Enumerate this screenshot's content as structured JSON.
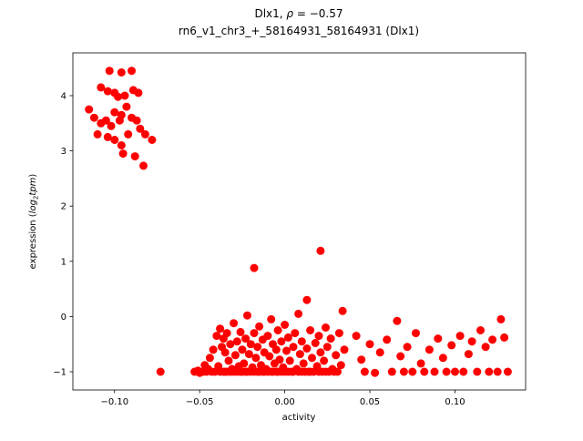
{
  "figure": {
    "background": "#ffffff"
  },
  "chart_data": {
    "type": "scatter",
    "title_parts": {
      "name": "Dlx1, ",
      "rho": "ρ",
      "rest": " = −0.57"
    },
    "subtitle": "rn6_v1_chr3_+_58164931_58164931 (Dlx1)",
    "xlabel": "activity",
    "ylabel_parts": {
      "prefix": "expression (",
      "log": "log",
      "sub": "2",
      "word": "tpm",
      "suffix": ")"
    },
    "marker_color": "#ff0000",
    "marker_radius": 4.5,
    "grid": false,
    "legend": "none",
    "xlim": [
      -0.1245,
      0.1415
    ],
    "ylim": [
      -1.33,
      4.775
    ],
    "xticks": [
      -0.1,
      -0.05,
      0.0,
      0.05,
      0.1
    ],
    "xtick_labels": [
      "−0.10",
      "−0.05",
      "0.00",
      "0.05",
      "0.10"
    ],
    "yticks": [
      -1,
      0,
      1,
      2,
      3,
      4
    ],
    "ytick_labels": [
      "−1",
      "0",
      "1",
      "2",
      "3",
      "4"
    ],
    "points": [
      [
        -0.103,
        4.45
      ],
      [
        -0.096,
        4.42
      ],
      [
        -0.09,
        4.45
      ],
      [
        -0.108,
        4.15
      ],
      [
        -0.104,
        4.08
      ],
      [
        -0.1,
        4.05
      ],
      [
        -0.094,
        4.0
      ],
      [
        -0.089,
        4.1
      ],
      [
        -0.086,
        4.05
      ],
      [
        -0.098,
        3.98
      ],
      [
        -0.115,
        3.75
      ],
      [
        -0.112,
        3.6
      ],
      [
        -0.108,
        3.5
      ],
      [
        -0.105,
        3.55
      ],
      [
        -0.102,
        3.45
      ],
      [
        -0.1,
        3.7
      ],
      [
        -0.097,
        3.55
      ],
      [
        -0.096,
        3.65
      ],
      [
        -0.093,
        3.8
      ],
      [
        -0.09,
        3.6
      ],
      [
        -0.087,
        3.55
      ],
      [
        -0.11,
        3.3
      ],
      [
        -0.104,
        3.25
      ],
      [
        -0.1,
        3.2
      ],
      [
        -0.096,
        3.1
      ],
      [
        -0.092,
        3.3
      ],
      [
        -0.085,
        3.4
      ],
      [
        -0.082,
        3.3
      ],
      [
        -0.095,
        2.95
      ],
      [
        -0.088,
        2.9
      ],
      [
        -0.078,
        3.2
      ],
      [
        -0.083,
        2.73
      ],
      [
        -0.073,
        -1.0
      ],
      [
        -0.018,
        0.88
      ],
      [
        0.021,
        1.19
      ],
      [
        -0.053,
        -1.0
      ],
      [
        -0.051,
        -0.98
      ],
      [
        -0.05,
        -1.02
      ],
      [
        -0.048,
        -1.0
      ],
      [
        -0.047,
        -0.88
      ],
      [
        -0.046,
        -1.0
      ],
      [
        -0.045,
        -0.95
      ],
      [
        -0.044,
        -0.75
      ],
      [
        -0.043,
        -1.0
      ],
      [
        -0.042,
        -0.6
      ],
      [
        -0.041,
        -1.0
      ],
      [
        -0.04,
        -0.35
      ],
      [
        -0.039,
        -0.9
      ],
      [
        -0.038,
        -0.22
      ],
      [
        -0.038,
        -1.0
      ],
      [
        -0.037,
        -0.55
      ],
      [
        -0.036,
        -1.0
      ],
      [
        -0.036,
        -0.4
      ],
      [
        -0.035,
        -0.65
      ],
      [
        -0.035,
        -1.0
      ],
      [
        -0.034,
        -0.3
      ],
      [
        -0.034,
        -1.0
      ],
      [
        -0.033,
        -0.8
      ],
      [
        -0.032,
        -1.0
      ],
      [
        -0.032,
        -0.5
      ],
      [
        -0.031,
        -0.95
      ],
      [
        -0.03,
        -0.12
      ],
      [
        -0.03,
        -1.0
      ],
      [
        -0.029,
        -0.7
      ],
      [
        -0.028,
        -1.0
      ],
      [
        -0.028,
        -0.45
      ],
      [
        -0.027,
        -0.9
      ],
      [
        -0.026,
        -1.0
      ],
      [
        -0.026,
        -0.28
      ],
      [
        -0.025,
        -0.6
      ],
      [
        -0.025,
        -1.0
      ],
      [
        -0.024,
        -0.85
      ],
      [
        -0.023,
        -1.0
      ],
      [
        -0.023,
        -0.4
      ],
      [
        -0.022,
        0.02
      ],
      [
        -0.022,
        -1.0
      ],
      [
        -0.021,
        -0.68
      ],
      [
        -0.02,
        -1.0
      ],
      [
        -0.02,
        -0.5
      ],
      [
        -0.019,
        -0.92
      ],
      [
        -0.018,
        -1.0
      ],
      [
        -0.018,
        -0.3
      ],
      [
        -0.017,
        -0.75
      ],
      [
        -0.016,
        -1.0
      ],
      [
        -0.016,
        -0.55
      ],
      [
        -0.015,
        -1.0
      ],
      [
        -0.015,
        -0.18
      ],
      [
        -0.014,
        -0.88
      ],
      [
        -0.013,
        -1.0
      ],
      [
        -0.013,
        -0.42
      ],
      [
        -0.012,
        -0.65
      ],
      [
        -0.012,
        -1.0
      ],
      [
        -0.011,
        -0.95
      ],
      [
        -0.01,
        -1.0
      ],
      [
        -0.01,
        -0.35
      ],
      [
        -0.009,
        -0.72
      ],
      [
        -0.008,
        -1.0
      ],
      [
        -0.008,
        -0.05
      ],
      [
        -0.007,
        -0.5
      ],
      [
        -0.007,
        -1.0
      ],
      [
        -0.006,
        -0.85
      ],
      [
        -0.005,
        -1.0
      ],
      [
        -0.005,
        -0.6
      ],
      [
        -0.004,
        -0.25
      ],
      [
        -0.004,
        -1.0
      ],
      [
        -0.003,
        -0.78
      ],
      [
        -0.002,
        -1.0
      ],
      [
        -0.002,
        -0.45
      ],
      [
        -0.001,
        -0.92
      ],
      [
        0.0,
        -1.0
      ],
      [
        0.0,
        -0.15
      ],
      [
        0.001,
        -0.62
      ],
      [
        0.002,
        -1.0
      ],
      [
        0.002,
        -0.38
      ],
      [
        0.003,
        -0.8
      ],
      [
        0.004,
        -1.0
      ],
      [
        0.005,
        -0.55
      ],
      [
        0.005,
        -1.0
      ],
      [
        0.006,
        -0.3
      ],
      [
        0.007,
        -0.95
      ],
      [
        0.008,
        0.05
      ],
      [
        0.008,
        -1.0
      ],
      [
        0.009,
        -0.68
      ],
      [
        0.01,
        -1.0
      ],
      [
        0.01,
        -0.45
      ],
      [
        0.011,
        -0.85
      ],
      [
        0.012,
        -1.0
      ],
      [
        0.013,
        0.3
      ],
      [
        0.013,
        -0.58
      ],
      [
        0.014,
        -1.0
      ],
      [
        0.015,
        -0.25
      ],
      [
        0.015,
        -1.0
      ],
      [
        0.016,
        -0.75
      ],
      [
        0.017,
        -1.0
      ],
      [
        0.018,
        -0.48
      ],
      [
        0.019,
        -0.9
      ],
      [
        0.02,
        -1.0
      ],
      [
        0.02,
        -0.35
      ],
      [
        0.021,
        -0.65
      ],
      [
        0.022,
        -1.0
      ],
      [
        0.023,
        -0.8
      ],
      [
        0.024,
        -0.2
      ],
      [
        0.024,
        -1.0
      ],
      [
        0.025,
        -0.55
      ],
      [
        0.026,
        -1.0
      ],
      [
        0.027,
        -0.4
      ],
      [
        0.028,
        -0.95
      ],
      [
        0.029,
        -1.0
      ],
      [
        0.03,
        -0.7
      ],
      [
        0.031,
        -1.0
      ],
      [
        0.032,
        -0.3
      ],
      [
        0.033,
        -0.88
      ],
      [
        0.034,
        0.1
      ],
      [
        0.035,
        -0.6
      ],
      [
        0.042,
        -0.35
      ],
      [
        0.045,
        -0.78
      ],
      [
        0.047,
        -1.0
      ],
      [
        0.05,
        -0.5
      ],
      [
        0.053,
        -1.02
      ],
      [
        0.056,
        -0.65
      ],
      [
        0.06,
        -0.42
      ],
      [
        0.063,
        -1.0
      ],
      [
        0.066,
        -0.08
      ],
      [
        0.068,
        -0.72
      ],
      [
        0.07,
        -1.0
      ],
      [
        0.072,
        -0.55
      ],
      [
        0.075,
        -1.0
      ],
      [
        0.077,
        -0.3
      ],
      [
        0.08,
        -0.85
      ],
      [
        0.082,
        -1.0
      ],
      [
        0.085,
        -0.6
      ],
      [
        0.088,
        -1.0
      ],
      [
        0.09,
        -0.4
      ],
      [
        0.093,
        -0.75
      ],
      [
        0.095,
        -1.0
      ],
      [
        0.098,
        -0.52
      ],
      [
        0.1,
        -1.0
      ],
      [
        0.103,
        -0.35
      ],
      [
        0.105,
        -1.0
      ],
      [
        0.108,
        -0.68
      ],
      [
        0.11,
        -0.45
      ],
      [
        0.113,
        -1.0
      ],
      [
        0.115,
        -0.25
      ],
      [
        0.118,
        -0.55
      ],
      [
        0.12,
        -1.0
      ],
      [
        0.122,
        -0.42
      ],
      [
        0.125,
        -1.0
      ],
      [
        0.127,
        -0.05
      ],
      [
        0.129,
        -0.38
      ],
      [
        0.131,
        -1.0
      ]
    ]
  }
}
